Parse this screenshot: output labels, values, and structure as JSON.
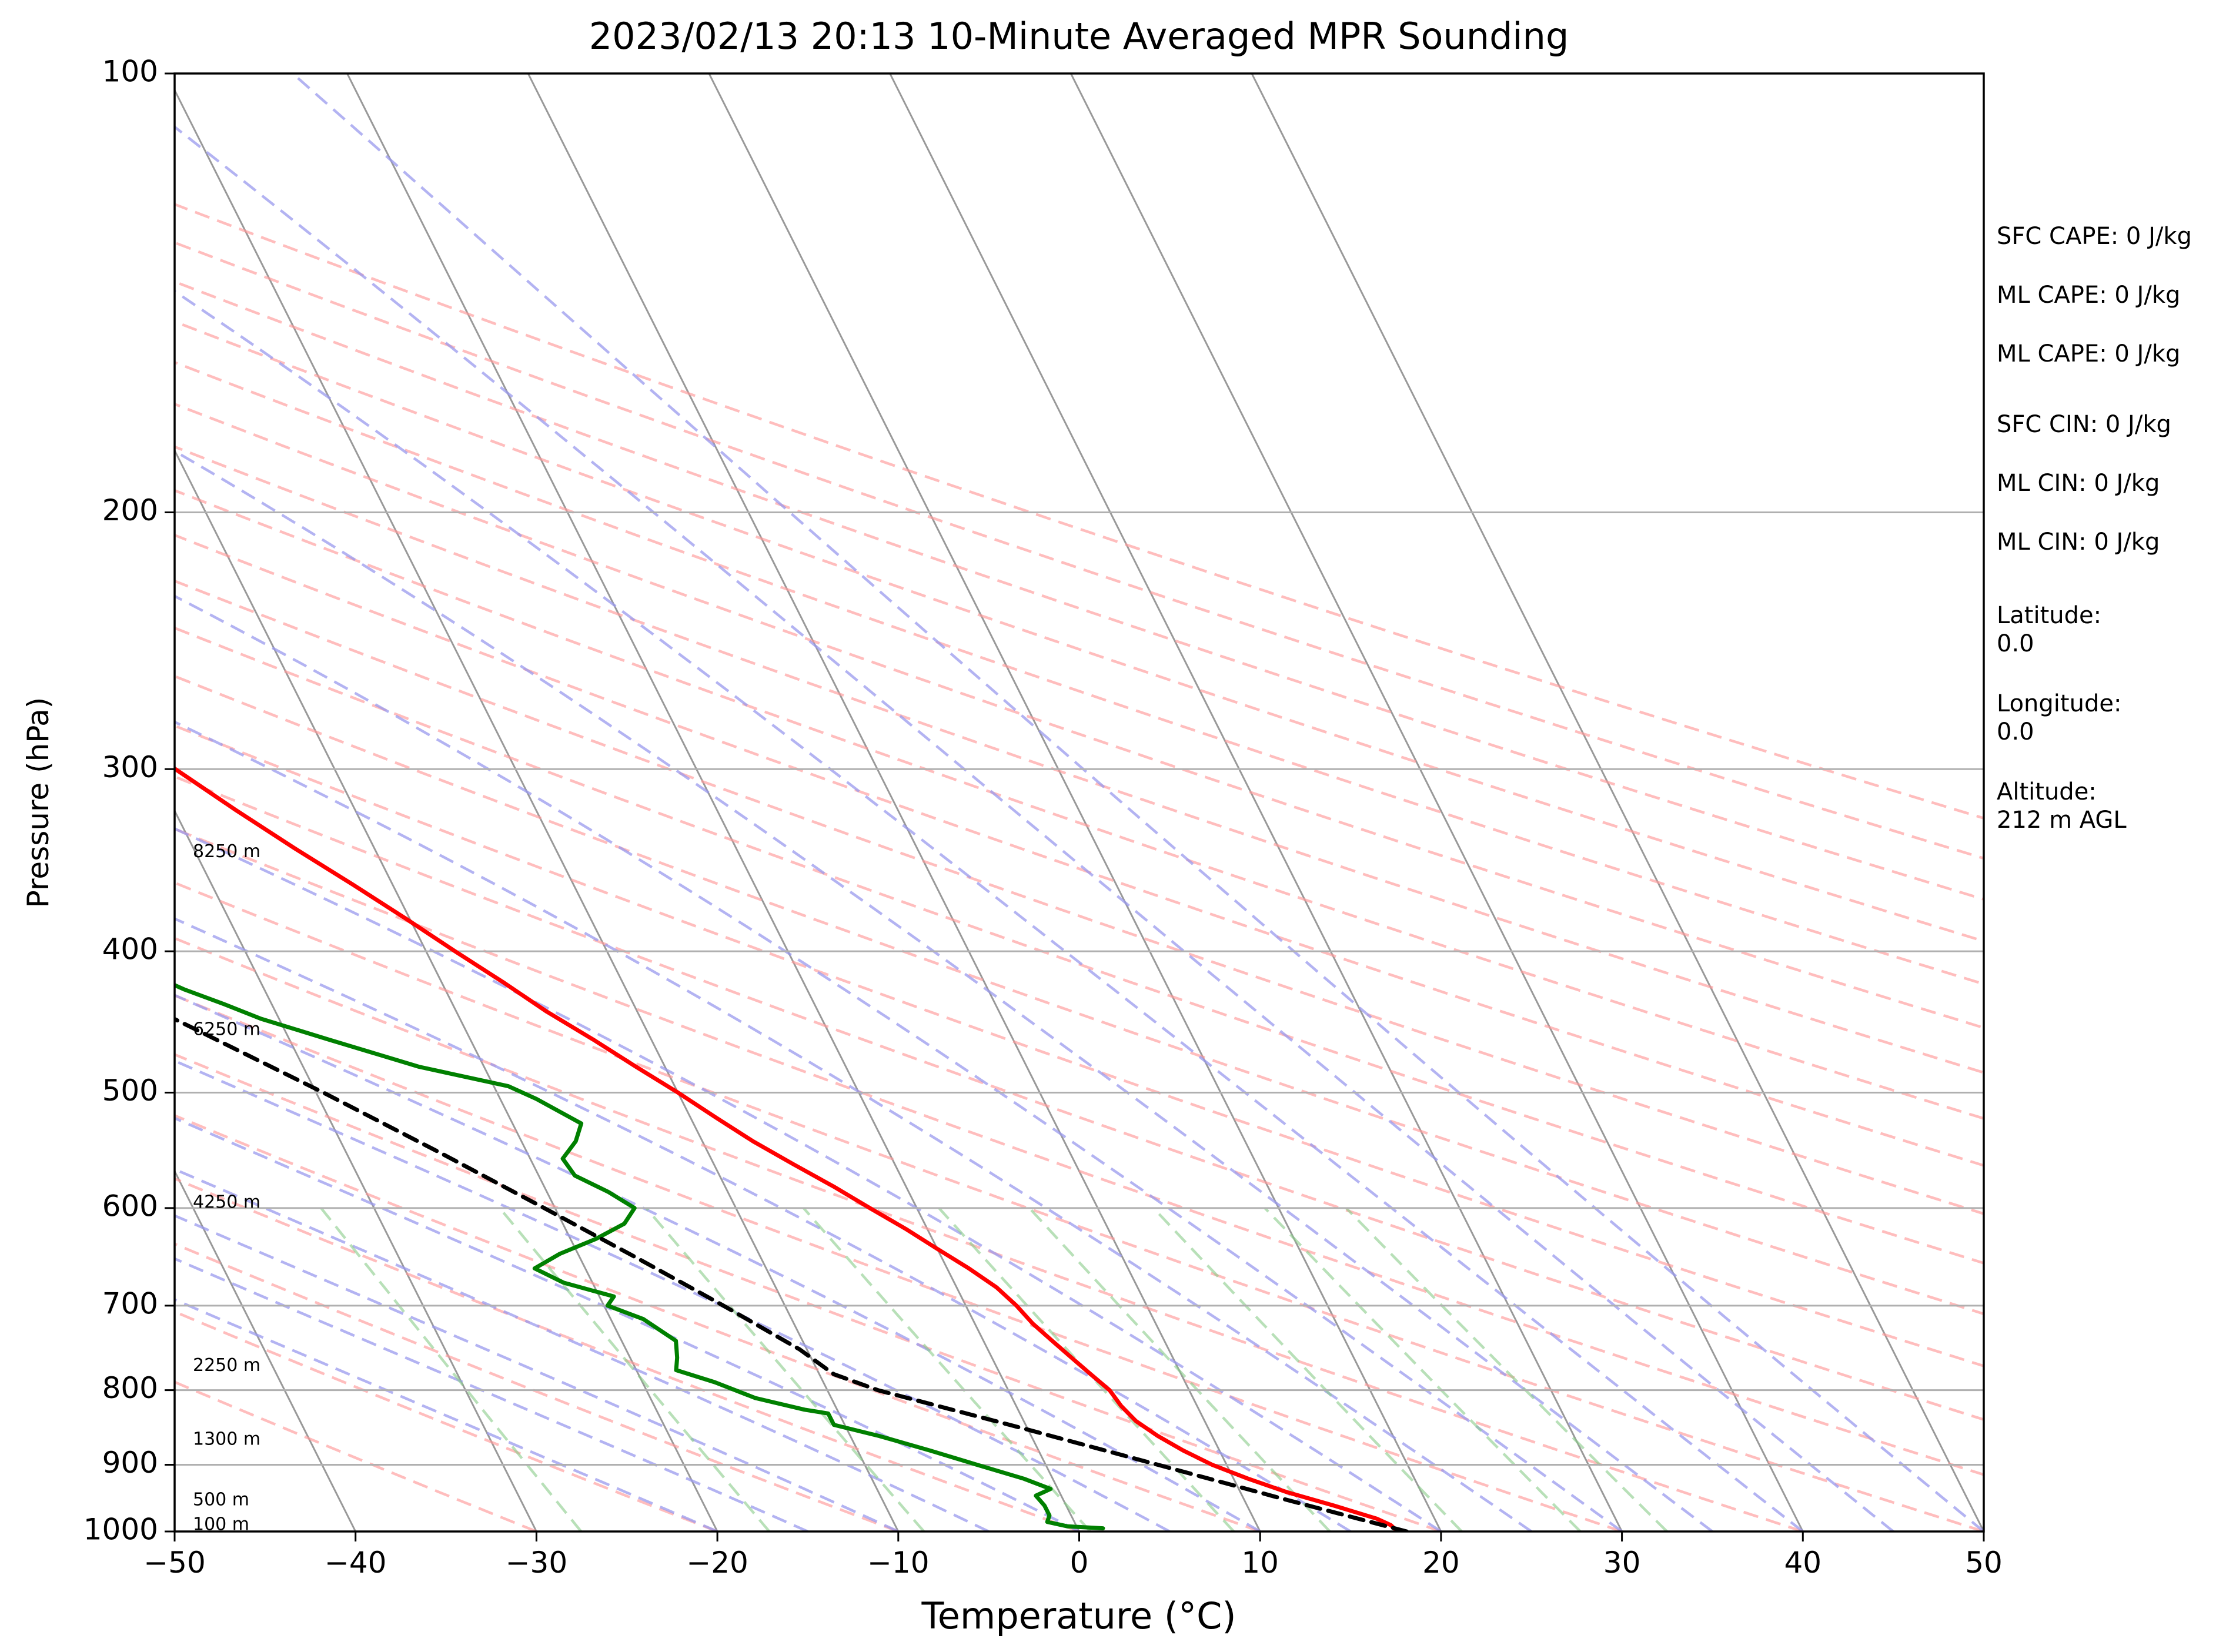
{
  "chart_data": {
    "type": "line",
    "subtype": "skew-T log-P sounding diagram",
    "title": "2023/02/13 20:13 10-Minute Averaged MPR Sounding",
    "xlabel": "Temperature (°C)",
    "ylabel": "Pressure (hPa)",
    "xlim": [
      -50,
      50
    ],
    "ylim": [
      1000,
      100
    ],
    "y_scale": "log",
    "x_ticks": [
      -50,
      -40,
      -30,
      -20,
      -10,
      0,
      10,
      20,
      30,
      40,
      50
    ],
    "x_tick_labels": [
      "−50",
      "−40",
      "−30",
      "−20",
      "−10",
      "0",
      "10",
      "20",
      "30",
      "40",
      "50"
    ],
    "y_ticks": [
      1000,
      900,
      800,
      700,
      600,
      500,
      400,
      300,
      200,
      100
    ],
    "y_tick_labels": [
      "1000",
      "900",
      "800",
      "700",
      "600",
      "500",
      "400",
      "300",
      "200",
      "100"
    ],
    "grid": true,
    "height_labels": [
      {
        "text": "100 m",
        "pressure": 990
      },
      {
        "text": "500 m",
        "pressure": 952
      },
      {
        "text": "1300 m",
        "pressure": 865
      },
      {
        "text": "2250 m",
        "pressure": 770
      },
      {
        "text": "4250 m",
        "pressure": 595
      },
      {
        "text": "6250 m",
        "pressure": 453
      },
      {
        "text": "8250 m",
        "pressure": 342
      }
    ],
    "series": [
      {
        "key": "temperature",
        "color": "#ff0000",
        "style": "solid",
        "points": [
          [
            1000,
            17.6
          ],
          [
            990,
            17.4
          ],
          [
            980,
            16.8
          ],
          [
            960,
            14.8
          ],
          [
            940,
            12.6
          ],
          [
            920,
            10.8
          ],
          [
            900,
            9.2
          ],
          [
            880,
            8.0
          ],
          [
            860,
            7.0
          ],
          [
            840,
            6.2
          ],
          [
            820,
            5.8
          ],
          [
            800,
            5.6
          ],
          [
            780,
            5.0
          ],
          [
            760,
            4.4
          ],
          [
            740,
            3.8
          ],
          [
            720,
            3.2
          ],
          [
            700,
            2.8
          ],
          [
            680,
            2.2
          ],
          [
            660,
            1.2
          ],
          [
            640,
            0.0
          ],
          [
            620,
            -1.2
          ],
          [
            600,
            -2.6
          ],
          [
            580,
            -4.0
          ],
          [
            560,
            -5.6
          ],
          [
            540,
            -7.2
          ],
          [
            520,
            -8.6
          ],
          [
            500,
            -10.0
          ],
          [
            480,
            -11.6
          ],
          [
            460,
            -13.2
          ],
          [
            440,
            -15.0
          ],
          [
            420,
            -16.6
          ],
          [
            400,
            -18.4
          ],
          [
            380,
            -20.2
          ],
          [
            360,
            -22.2
          ],
          [
            340,
            -24.4
          ],
          [
            320,
            -26.6
          ],
          [
            300,
            -28.8
          ],
          [
            285,
            -30.4
          ],
          [
            270,
            -32.4
          ],
          [
            260,
            -33.6
          ]
        ]
      },
      {
        "key": "dewpoint",
        "color": "#008000",
        "style": "solid",
        "points": [
          [
            995,
            1.4
          ],
          [
            992,
            -0.5
          ],
          [
            985,
            -1.5
          ],
          [
            975,
            -1.2
          ],
          [
            960,
            -1.2
          ],
          [
            945,
            -1.4
          ],
          [
            935,
            -0.4
          ],
          [
            920,
            -1.6
          ],
          [
            900,
            -3.8
          ],
          [
            880,
            -6.0
          ],
          [
            860,
            -8.4
          ],
          [
            845,
            -10.6
          ],
          [
            830,
            -10.6
          ],
          [
            825,
            -11.8
          ],
          [
            810,
            -14.2
          ],
          [
            790,
            -16.0
          ],
          [
            775,
            -17.8
          ],
          [
            760,
            -17.4
          ],
          [
            740,
            -17.0
          ],
          [
            715,
            -18.2
          ],
          [
            700,
            -19.8
          ],
          [
            690,
            -19.2
          ],
          [
            675,
            -21.6
          ],
          [
            660,
            -22.8
          ],
          [
            645,
            -21.0
          ],
          [
            630,
            -18.6
          ],
          [
            615,
            -16.6
          ],
          [
            600,
            -15.6
          ],
          [
            585,
            -16.6
          ],
          [
            570,
            -18.0
          ],
          [
            555,
            -18.2
          ],
          [
            540,
            -17.0
          ],
          [
            525,
            -16.2
          ],
          [
            505,
            -18.0
          ],
          [
            495,
            -19.2
          ],
          [
            480,
            -23.6
          ],
          [
            460,
            -27.8
          ],
          [
            445,
            -31.0
          ],
          [
            435,
            -32.6
          ],
          [
            425,
            -34.4
          ],
          [
            410,
            -36.6
          ],
          [
            400,
            -37.8
          ],
          [
            388,
            -35.2
          ],
          [
            375,
            -36.4
          ],
          [
            362,
            -38.0
          ],
          [
            350,
            -41.6
          ],
          [
            340,
            -43.4
          ],
          [
            328,
            -44.4
          ],
          [
            315,
            -47.6
          ],
          [
            305,
            -49.4
          ],
          [
            300,
            -49.8
          ],
          [
            293,
            -55.0
          ],
          [
            285,
            -57.5
          ],
          [
            278,
            -53.0
          ],
          [
            262,
            -53.4
          ]
        ]
      },
      {
        "key": "parcel",
        "color": "#000000",
        "style": "dashed",
        "points": [
          [
            1000,
            18.1
          ],
          [
            950,
            12.2
          ],
          [
            900,
            6.2
          ],
          [
            850,
            -0.2
          ],
          [
            800,
            -7.2
          ],
          [
            780,
            -9.2
          ],
          [
            750,
            -10.4
          ],
          [
            700,
            -13.4
          ],
          [
            650,
            -16.8
          ],
          [
            600,
            -20.6
          ],
          [
            550,
            -24.8
          ],
          [
            500,
            -29.6
          ],
          [
            450,
            -35.2
          ],
          [
            400,
            -41.6
          ],
          [
            350,
            -49.0
          ],
          [
            300,
            -57.6
          ],
          [
            262,
            -65.4
          ]
        ]
      }
    ],
    "isotherms": {
      "color": "#999999",
      "start": -100,
      "end": 50,
      "step": 10
    },
    "dry_adiabats_theta_C": {
      "color": "#ff9999",
      "start": -30,
      "end": 200,
      "step": 10
    },
    "moist_adiabats_T_at_1000hPa": {
      "color": "#9999ee",
      "values": [
        -20,
        -15,
        -10,
        -5,
        0,
        5,
        10,
        15,
        20,
        25,
        30,
        35,
        40,
        45,
        50
      ]
    },
    "mixing_ratio_lines_gkg": {
      "color": "#88cc88",
      "values": [
        0.4,
        1,
        2,
        4,
        7,
        10,
        16,
        24,
        32
      ],
      "top_pressure": 600
    }
  },
  "info": {
    "sfc_cape": "SFC CAPE: 0 J/kg",
    "ml_cape_1": "ML CAPE: 0 J/kg",
    "ml_cape_2": "ML CAPE: 0 J/kg",
    "sfc_cin": "SFC CIN: 0 J/kg",
    "ml_cin_1": "ML CIN: 0 J/kg",
    "ml_cin_2": "ML CIN: 0 J/kg",
    "latitude": "Latitude:\n0.0",
    "longitude": "Longitude:\n0.0",
    "altitude": "Altitude:\n212 m AGL"
  }
}
